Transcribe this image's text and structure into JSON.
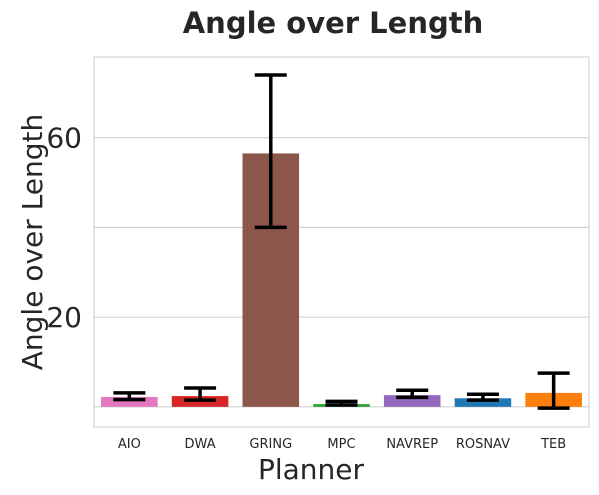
{
  "chart_data": {
    "type": "bar",
    "title": "Angle over Length",
    "xlabel": "Planner",
    "ylabel": "Angle over Length",
    "categories": [
      "AIO",
      "DWA",
      "GRING",
      "MPC",
      "NAVREP",
      "ROSNAV",
      "TEB"
    ],
    "values": [
      2.2,
      2.4,
      56.5,
      0.6,
      2.6,
      1.9,
      3.1
    ],
    "error_low": [
      1.6,
      1.5,
      40.0,
      0.4,
      2.1,
      1.5,
      -0.3
    ],
    "error_high": [
      3.1,
      4.2,
      74.0,
      1.2,
      3.7,
      2.8,
      7.5
    ],
    "colors": [
      "#e377c2",
      "#d62728",
      "#8c564b",
      "#2ca02c",
      "#9467bd",
      "#1f77b4",
      "#ff7f0e"
    ],
    "ylim": [
      -4.5,
      78
    ],
    "yticks": [
      20,
      60
    ],
    "grid": true,
    "grid_axis": "y"
  }
}
